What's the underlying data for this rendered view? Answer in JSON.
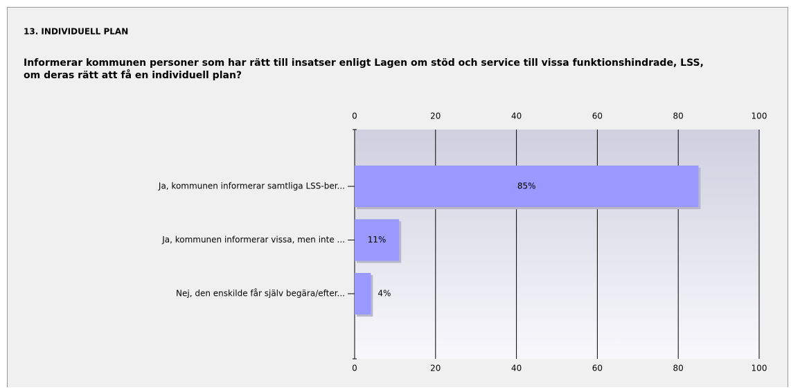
{
  "chart_data": {
    "type": "bar",
    "orientation": "horizontal",
    "title": "13. INDIVIDUELL PLAN",
    "subtitle": "Informerar kommunen personer som har rätt till insatser enligt Lagen om stöd och service till vissa funktionshindrade, LSS, om deras rätt att få en individuell plan?",
    "categories": [
      "Ja, kommunen informerar samtliga LSS-ber...",
      "Ja, kommunen informerar vissa, men inte ...",
      "Nej, den enskilde får själv begära/efter..."
    ],
    "values": [
      85,
      11,
      4
    ],
    "value_labels": [
      "85%",
      "11%",
      "4%"
    ],
    "color": "#9999ff",
    "xlim": [
      0,
      100
    ],
    "xticks": [
      0,
      20,
      40,
      60,
      80,
      100
    ],
    "grid": true
  }
}
